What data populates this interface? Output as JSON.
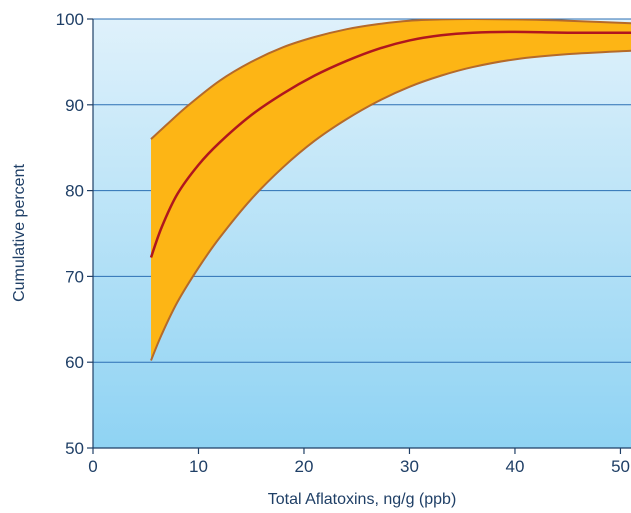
{
  "chart_data": {
    "type": "area",
    "title": "",
    "xlabel": "Total Aflatoxins, ng/g (ppb)",
    "ylabel": "Cumulative percent",
    "xlim": [
      0,
      51
    ],
    "ylim": [
      50,
      100
    ],
    "x_ticks": [
      "0",
      "10",
      "20",
      "30",
      "40",
      "50"
    ],
    "y_ticks": [
      "50",
      "60",
      "70",
      "80",
      "90",
      "100"
    ],
    "grid": true,
    "legend": "none",
    "colors": {
      "background_top": "#dff1fb",
      "background_bottom": "#8fd3f3",
      "band_fill": "#fdb515",
      "band_edge": "#b56a2a",
      "center_line": "#b0161e",
      "grid": "#2c6fb3",
      "axis_text": "#1f3f66"
    },
    "series": [
      {
        "role": "upper-bound",
        "x": [
          5.5,
          7,
          9,
          12,
          15,
          18,
          21,
          24,
          27,
          30,
          33,
          36,
          40,
          45,
          51
        ],
        "y": [
          86,
          87.7,
          89.9,
          92.8,
          95.0,
          96.7,
          97.9,
          98.8,
          99.4,
          99.8,
          99.95,
          100,
          99.95,
          99.8,
          99.5
        ]
      },
      {
        "role": "central-estimate",
        "x": [
          5.5,
          6.5,
          8,
          10,
          12,
          15,
          18,
          21,
          24,
          27,
          30,
          33,
          36,
          40,
          45,
          51
        ],
        "y": [
          72.2,
          75.7,
          79.6,
          83.0,
          85.6,
          88.8,
          91.3,
          93.4,
          95.1,
          96.5,
          97.5,
          98.1,
          98.4,
          98.5,
          98.4,
          98.4
        ]
      },
      {
        "role": "lower-bound",
        "x": [
          5.5,
          6.5,
          8,
          10,
          12,
          15,
          18,
          21,
          24,
          27,
          30,
          33,
          36,
          40,
          45,
          51
        ],
        "y": [
          60.2,
          63.2,
          67.0,
          71.0,
          74.5,
          79.0,
          82.7,
          85.8,
          88.3,
          90.4,
          92.1,
          93.4,
          94.4,
          95.3,
          95.9,
          96.3
        ]
      }
    ]
  }
}
